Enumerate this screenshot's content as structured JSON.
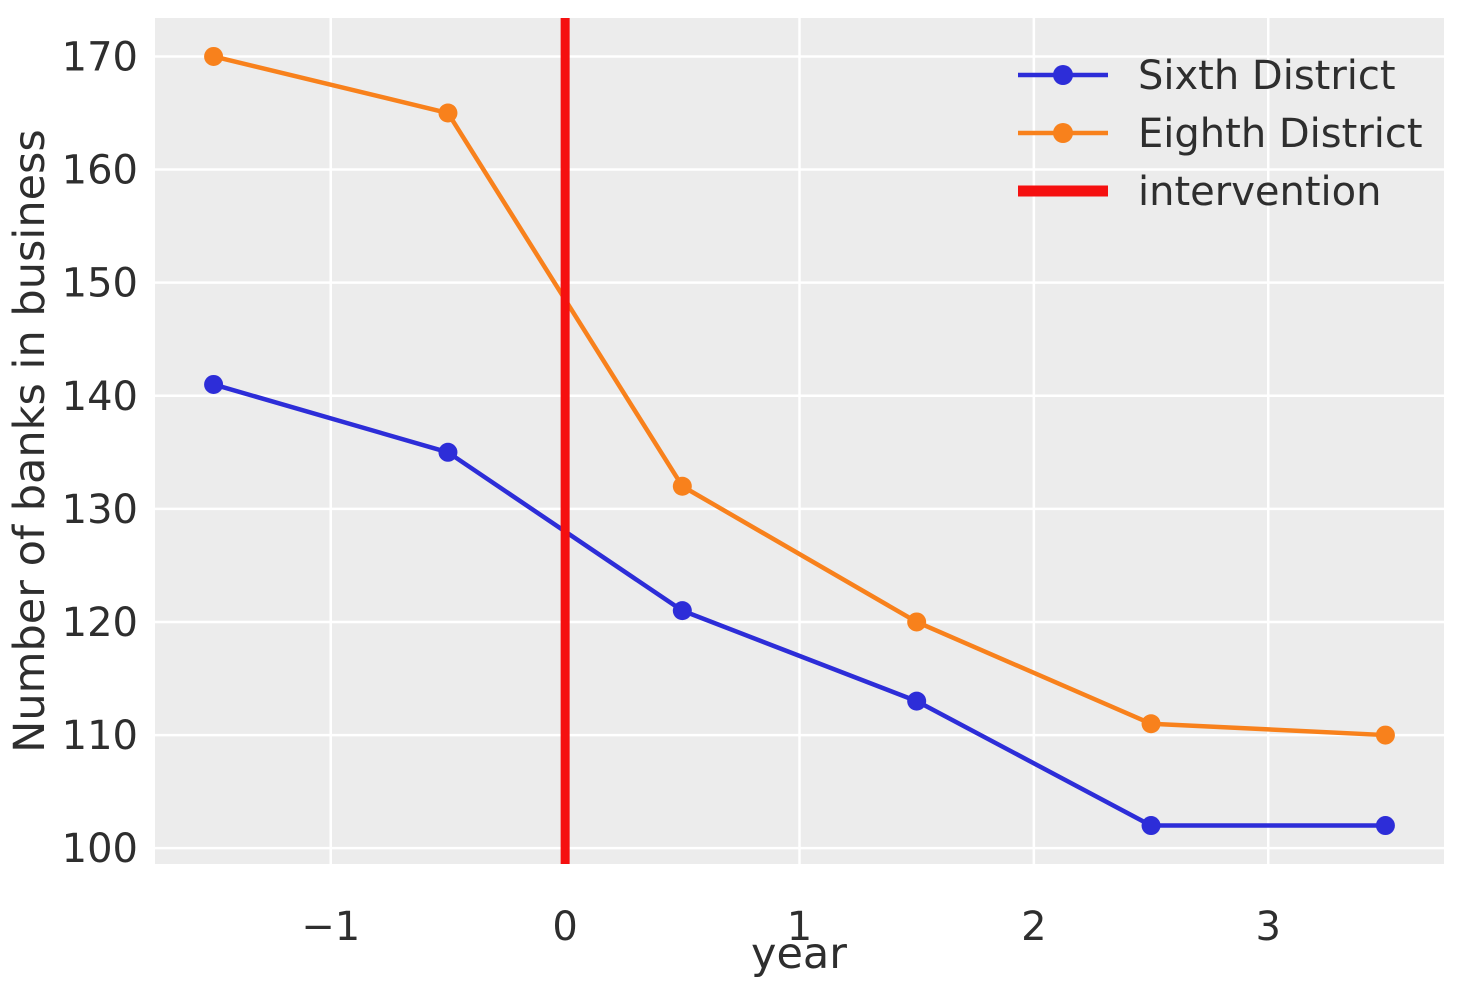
{
  "chart_data": {
    "type": "line",
    "title": "",
    "xlabel": "year",
    "ylabel": "Number of banks in business",
    "x": [
      -1.5,
      -0.5,
      0.5,
      1.5,
      2.5,
      3.5
    ],
    "series": [
      {
        "name": "Sixth District",
        "color": "#2d2dd8",
        "marker": "circle",
        "values": [
          141,
          135,
          121,
          113,
          102,
          102
        ]
      },
      {
        "name": "Eighth District",
        "color": "#f8811c",
        "marker": "circle",
        "values": [
          170,
          165,
          132,
          120,
          111,
          110
        ]
      }
    ],
    "vline": {
      "label": "intervention",
      "x": 0,
      "color": "#f51010"
    },
    "xticks": [
      -1,
      0,
      1,
      2,
      3
    ],
    "xtick_labels": [
      "−1",
      "0",
      "1",
      "2",
      "3"
    ],
    "yticks": [
      100,
      110,
      120,
      130,
      140,
      150,
      160,
      170
    ],
    "ytick_labels": [
      "100",
      "110",
      "120",
      "130",
      "140",
      "150",
      "160",
      "170"
    ],
    "xlim": [
      -1.75,
      3.75
    ],
    "ylim": [
      98.6,
      173.4
    ],
    "grid": true,
    "legend_position": "upper right",
    "colors": {
      "plot_background": "#ececec",
      "grid": "#ffffff",
      "text": "#2e2e2e",
      "figure_background": "#ffffff"
    }
  }
}
